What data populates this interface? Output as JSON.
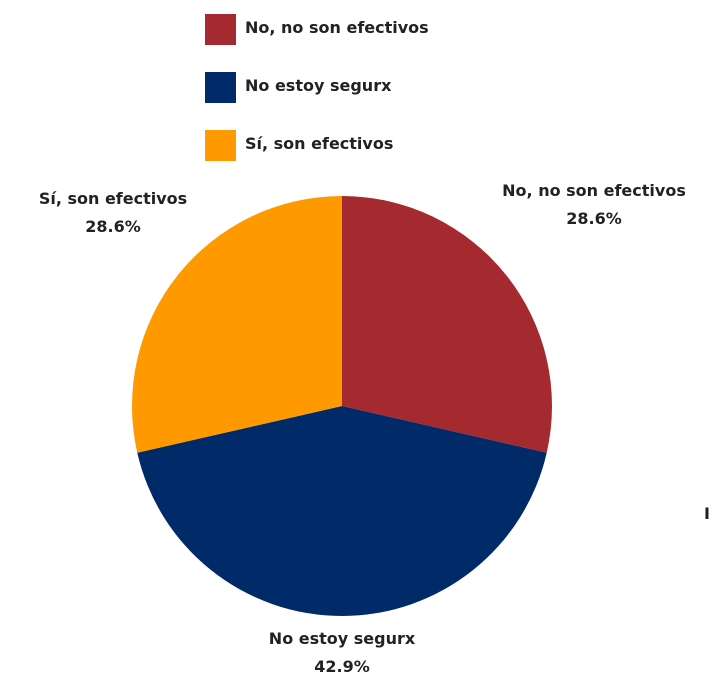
{
  "chart_data": {
    "type": "pie",
    "categories": [
      "No, no son efectivos",
      "No estoy segurx",
      "Sí, son efectivos"
    ],
    "values": [
      28.6,
      42.9,
      28.6
    ],
    "value_labels": [
      "28.6%",
      "42.9%",
      "28.6%"
    ],
    "colors": [
      "#a52a2f",
      "#002a68",
      "#ff9900"
    ],
    "legend_position": "top",
    "start_angle": "12 o'clock, clockwise"
  }
}
